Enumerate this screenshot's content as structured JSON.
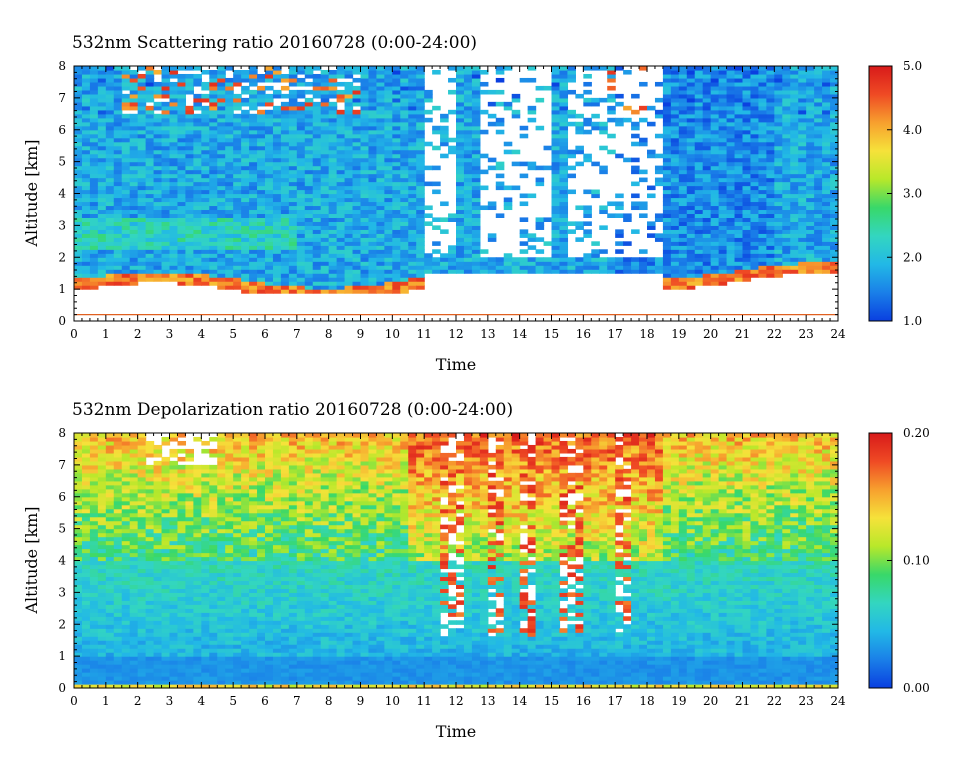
{
  "colors": {
    "background": "#ffffff",
    "frame": "#000000",
    "surface_line": "#e06020",
    "colormap": [
      "#0a3fe0",
      "#1a7fe8",
      "#22b8e6",
      "#33d6c0",
      "#38d86a",
      "#b8e82a",
      "#f6e23a",
      "#f7a02e",
      "#ef4a24",
      "#d81a1a"
    ]
  },
  "chart_data": [
    {
      "type": "heatmap",
      "title": "532nm Scattering ratio  20160728 (0:00-24:00)",
      "xlabel": "Time",
      "ylabel": "Altitude [km]",
      "xlim": [
        0,
        24
      ],
      "ylim": [
        0,
        8
      ],
      "x_ticks": [
        "0",
        "1",
        "2",
        "3",
        "4",
        "5",
        "6",
        "7",
        "8",
        "9",
        "10",
        "11",
        "12",
        "13",
        "14",
        "15",
        "16",
        "17",
        "18",
        "19",
        "20",
        "21",
        "22",
        "23",
        "24"
      ],
      "y_ticks": [
        "0",
        "1",
        "2",
        "3",
        "4",
        "5",
        "6",
        "7",
        "8"
      ],
      "colorbar": {
        "range": [
          1.0,
          5.0
        ],
        "ticks": [
          "1.0",
          "2.0",
          "3.0",
          "4.0",
          "5.0"
        ]
      },
      "surface_line_altitude_km": 0.2,
      "features": {
        "boundary_layer_top_km": 1.3,
        "background_value": 1.8,
        "boundary_layer_value": 4.2,
        "elevated_layer_km": 2.7,
        "elevated_layer_value": 2.8,
        "upper_cloud_altitude_km": [
          6.5,
          8
        ],
        "upper_cloud_time_h": [
          [
            1.5,
            5.5
          ],
          [
            5.5,
            9
          ],
          [
            16.5,
            18
          ]
        ],
        "signal_gaps_time_h": [
          [
            11,
            12
          ],
          [
            12.7,
            15
          ],
          [
            15.5,
            16.5
          ],
          [
            16.6,
            18.5
          ]
        ]
      }
    },
    {
      "type": "heatmap",
      "title": "532nm Depolarization ratio  20160728 (0:00-24:00)",
      "xlabel": "Time",
      "ylabel": "Altitude [km]",
      "xlim": [
        0,
        24
      ],
      "ylim": [
        0,
        8
      ],
      "x_ticks": [
        "0",
        "1",
        "2",
        "3",
        "4",
        "5",
        "6",
        "7",
        "8",
        "9",
        "10",
        "11",
        "12",
        "13",
        "14",
        "15",
        "16",
        "17",
        "18",
        "19",
        "20",
        "21",
        "22",
        "23",
        "24"
      ],
      "y_ticks": [
        "0",
        "1",
        "2",
        "3",
        "4",
        "5",
        "6",
        "7",
        "8"
      ],
      "colorbar": {
        "range": [
          0.0,
          0.2
        ],
        "ticks": [
          "0.00",
          "0.10",
          "0.20"
        ]
      },
      "features": {
        "low_value_below_km": 1.0,
        "low_value": 0.02,
        "mid_value": 0.05,
        "upper_value": 0.15,
        "cloud_columns_time_h": [
          [
            11.5,
            12.2
          ],
          [
            12.9,
            13.6
          ],
          [
            14.0,
            14.6
          ],
          [
            15.3,
            16.1
          ],
          [
            17.1,
            17.5
          ]
        ]
      }
    }
  ]
}
